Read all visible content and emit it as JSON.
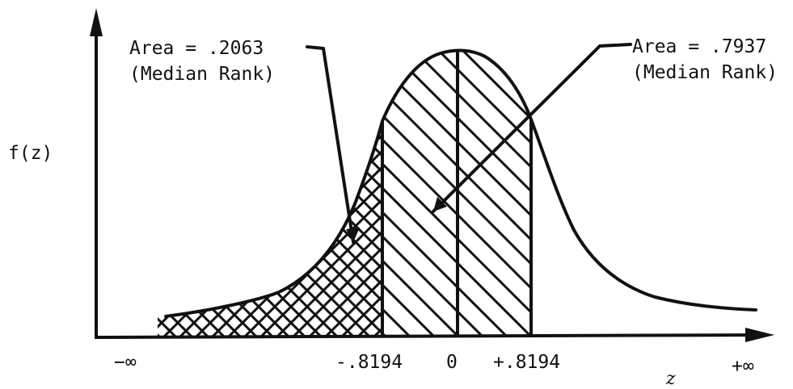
{
  "y_axis_label": "f(z)",
  "x_axis_label": "z",
  "x_ticks": {
    "neg_inf": "−∞",
    "neg": "-.8194",
    "zero": "0",
    "pos": "+.8194",
    "pos_inf": "+∞"
  },
  "annotations": {
    "left": {
      "area": "Area = .2063",
      "note": "(Median Rank)"
    },
    "right": {
      "area": "Area = .7937",
      "note": "(Median Rank)"
    }
  },
  "colors": {
    "ink": "#111111",
    "paper": "#ffffff"
  }
}
